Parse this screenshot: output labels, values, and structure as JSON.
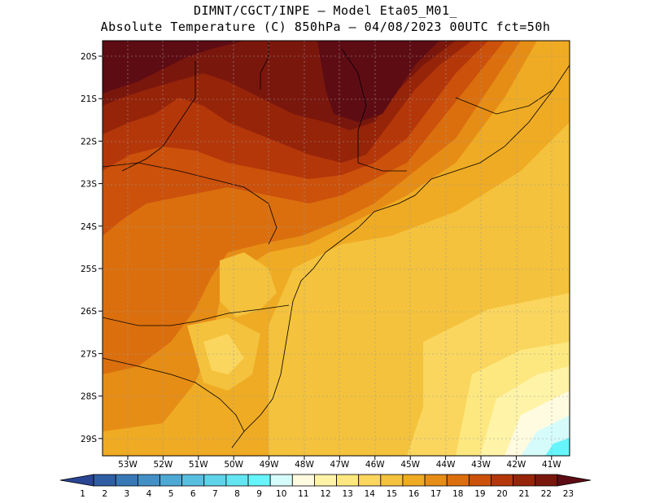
{
  "header": {
    "line1": "DIMNT/CGCT/INPE –  Model Eta05_M01_",
    "line2": "Absolute Temperature (C) 850hPa –  04/08/2023 00UTC fct=50h"
  },
  "axes": {
    "lat_labels": [
      "20S",
      "21S",
      "22S",
      "23S",
      "24S",
      "25S",
      "26S",
      "27S",
      "28S",
      "29S"
    ],
    "lon_labels": [
      "53W",
      "52W",
      "51W",
      "50W",
      "49W",
      "48W",
      "47W",
      "46W",
      "45W",
      "44W",
      "43W",
      "42W",
      "41W"
    ]
  },
  "colorbar": {
    "labels": [
      "1",
      "2",
      "3",
      "4",
      "5",
      "6",
      "7",
      "8",
      "9",
      "10",
      "11",
      "12",
      "13",
      "14",
      "15",
      "16",
      "17",
      "18",
      "19",
      "20",
      "21",
      "22",
      "23"
    ],
    "colors": [
      "#2a4593",
      "#2f5ea4",
      "#3878b6",
      "#4390c6",
      "#4ea8d4",
      "#58bfe0",
      "#5fd3ea",
      "#64e6f2",
      "#66f5fb",
      "#d6fbfb",
      "#fffbe0",
      "#fff3a8",
      "#fde880",
      "#fad65e",
      "#f4c23c",
      "#efab23",
      "#e68d16",
      "#db6f0e",
      "#cc510b",
      "#b4370a",
      "#962409",
      "#7a170d",
      "#5e0c14"
    ]
  }
}
